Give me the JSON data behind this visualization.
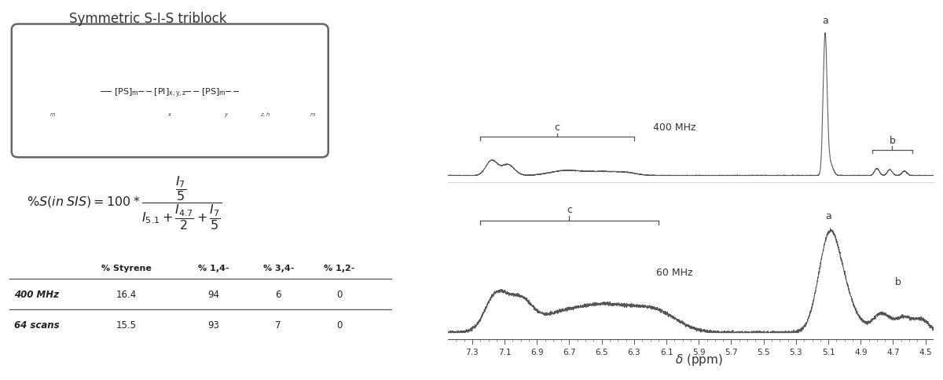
{
  "title_text": "Symmetric S-I-S triblock",
  "table_headers": [
    "",
    "% Styrene",
    "% 1,4-",
    "% 3,4-",
    "% 1,2-"
  ],
  "table_row1_label": "400 MHz",
  "table_row1": [
    "16.4",
    "94",
    "6",
    "0"
  ],
  "table_row2_label": "64 scans",
  "table_row2": [
    "15.5",
    "93",
    "7",
    "0"
  ],
  "xticks": [
    7.3,
    7.1,
    6.9,
    6.7,
    6.5,
    6.3,
    6.1,
    5.9,
    5.7,
    5.5,
    5.3,
    5.1,
    4.9,
    4.7,
    4.5
  ],
  "spec1_label": "400 MHz",
  "spec2_label": "60 MHz",
  "background_color": "#ffffff",
  "line_color": "#555555",
  "text_color": "#333333",
  "xmin": 4.45,
  "xmax": 7.45
}
